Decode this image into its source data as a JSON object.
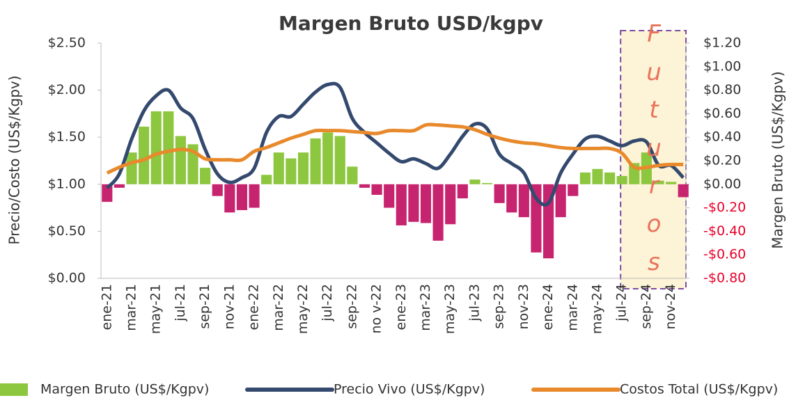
{
  "chart_data": {
    "type": "bar-line",
    "title": "Margen Bruto USD/kgpv",
    "ylabel": "Precio/Costo (US$/Kgpv)",
    "y2label": "Margen Bruto (US$/Kgpv)",
    "annotation": "Futuros",
    "annotation_span": [
      "jul-24",
      "dic-24"
    ],
    "categories": [
      "ene-21",
      null,
      "mar-21",
      null,
      "may-21",
      null,
      "jul-21",
      null,
      "sep-21",
      null,
      "nov-21",
      null,
      "ene-22",
      null,
      "mar-22",
      null,
      "may-22",
      null,
      "jul-22",
      null,
      "sep-22",
      null,
      "no v-22",
      null,
      "ene-23",
      null,
      "mar-23",
      null,
      "may-23",
      null,
      "jul-23",
      null,
      "sep-23",
      null,
      "nov-23",
      null,
      "ene-24",
      null,
      "mar-24",
      null,
      "may-24",
      null,
      "jul-24",
      null,
      "sep-24",
      null,
      "nov-24",
      null
    ],
    "series": [
      {
        "name": "Margen Bruto (US$/Kgpv)",
        "type": "bar",
        "axis": "y2",
        "color": "#8dc63f",
        "negative_color": "#c7246f",
        "values": [
          -0.15,
          -0.03,
          0.27,
          0.49,
          0.62,
          0.62,
          0.41,
          0.34,
          0.14,
          -0.1,
          -0.24,
          -0.22,
          -0.2,
          0.08,
          0.27,
          0.22,
          0.27,
          0.39,
          0.44,
          0.41,
          0.15,
          -0.03,
          -0.09,
          -0.2,
          -0.35,
          -0.32,
          -0.33,
          -0.48,
          -0.34,
          -0.12,
          0.04,
          0.01,
          -0.16,
          -0.24,
          -0.28,
          -0.58,
          -0.63,
          -0.28,
          -0.1,
          0.1,
          0.13,
          0.1,
          0.07,
          0.18,
          0.27,
          0.03,
          0.02,
          -0.11
        ]
      },
      {
        "name": "Precio Vivo (US$/Kgpv)",
        "type": "line",
        "color": "#34496e",
        "values": [
          0.96,
          1.11,
          1.48,
          1.78,
          1.94,
          2.0,
          1.81,
          1.7,
          1.37,
          1.11,
          1.02,
          1.07,
          1.17,
          1.55,
          1.72,
          1.72,
          1.85,
          1.98,
          2.06,
          2.03,
          1.7,
          1.55,
          1.44,
          1.33,
          1.24,
          1.27,
          1.22,
          1.17,
          1.32,
          1.51,
          1.64,
          1.59,
          1.32,
          1.22,
          1.12,
          0.85,
          0.8,
          1.12,
          1.32,
          1.48,
          1.51,
          1.46,
          1.41,
          1.46,
          1.45,
          1.2,
          1.2,
          1.07
        ]
      },
      {
        "name": "Costos  Total (US$/Kgpv)",
        "type": "line",
        "color": "#e8892b",
        "values": [
          1.12,
          1.18,
          1.23,
          1.26,
          1.32,
          1.35,
          1.37,
          1.35,
          1.27,
          1.26,
          1.26,
          1.26,
          1.35,
          1.39,
          1.44,
          1.49,
          1.53,
          1.57,
          1.57,
          1.57,
          1.56,
          1.55,
          1.54,
          1.57,
          1.57,
          1.57,
          1.63,
          1.63,
          1.62,
          1.61,
          1.58,
          1.53,
          1.49,
          1.46,
          1.44,
          1.43,
          1.41,
          1.39,
          1.38,
          1.38,
          1.38,
          1.38,
          1.33,
          1.18,
          1.18,
          1.2,
          1.21,
          1.21
        ]
      }
    ],
    "ylim": [
      0,
      2.5
    ],
    "yticks": [
      {
        "value": 0,
        "label": "$0.00"
      },
      {
        "value": 0.5,
        "label": "$0.50"
      },
      {
        "value": 1,
        "label": "$1.00"
      },
      {
        "value": 1.5,
        "label": "$1.50"
      },
      {
        "value": 2,
        "label": "$2.00"
      },
      {
        "value": 2.5,
        "label": "$2.50"
      }
    ],
    "y2lim": [
      -0.8,
      1.2
    ],
    "y2ticks": [
      {
        "value": -0.8,
        "label": "-$0.80"
      },
      {
        "value": -0.6,
        "label": "-$0.60"
      },
      {
        "value": -0.4,
        "label": "-$0.40"
      },
      {
        "value": -0.2,
        "label": "-$0.20"
      },
      {
        "value": 0,
        "label": "$0.00"
      },
      {
        "value": 0.2,
        "label": "$0.20"
      },
      {
        "value": 0.4,
        "label": "$0.40"
      },
      {
        "value": 0.6,
        "label": "$0.60"
      },
      {
        "value": 0.8,
        "label": "$0.80"
      },
      {
        "value": 1,
        "label": "$1.00"
      },
      {
        "value": 1.2,
        "label": "$1.20"
      }
    ],
    "y2_negative_color": "#e8002a",
    "legend": "bottom"
  }
}
